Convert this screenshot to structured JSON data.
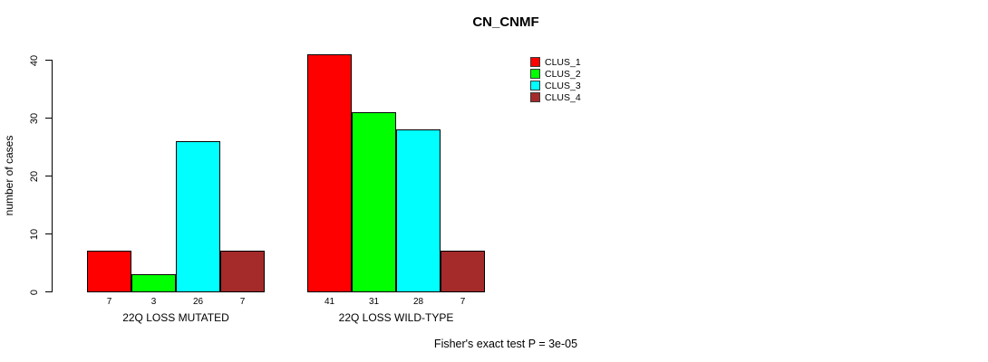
{
  "chart_data": {
    "type": "bar",
    "title": "CN_CNMF",
    "ylabel": "number of cases",
    "xlabel": "",
    "annotation": "Fisher's exact test P = 3e-05",
    "categories": [
      "22Q LOSS MUTATED",
      "22Q LOSS WILD-TYPE"
    ],
    "series": [
      {
        "name": "CLUS_1",
        "color": "#FF0000",
        "values": [
          7,
          41
        ]
      },
      {
        "name": "CLUS_2",
        "color": "#00FF00",
        "values": [
          3,
          31
        ]
      },
      {
        "name": "CLUS_3",
        "color": "#00FFFF",
        "values": [
          26,
          28
        ]
      },
      {
        "name": "CLUS_4",
        "color": "#A52A2A",
        "values": [
          7,
          7
        ]
      }
    ],
    "yticks": [
      0,
      10,
      20,
      30,
      40
    ],
    "ylim": [
      0,
      40
    ],
    "grid": false,
    "legend_position": "top-right",
    "bar_borders": true,
    "value_labels_under_bars": true
  }
}
